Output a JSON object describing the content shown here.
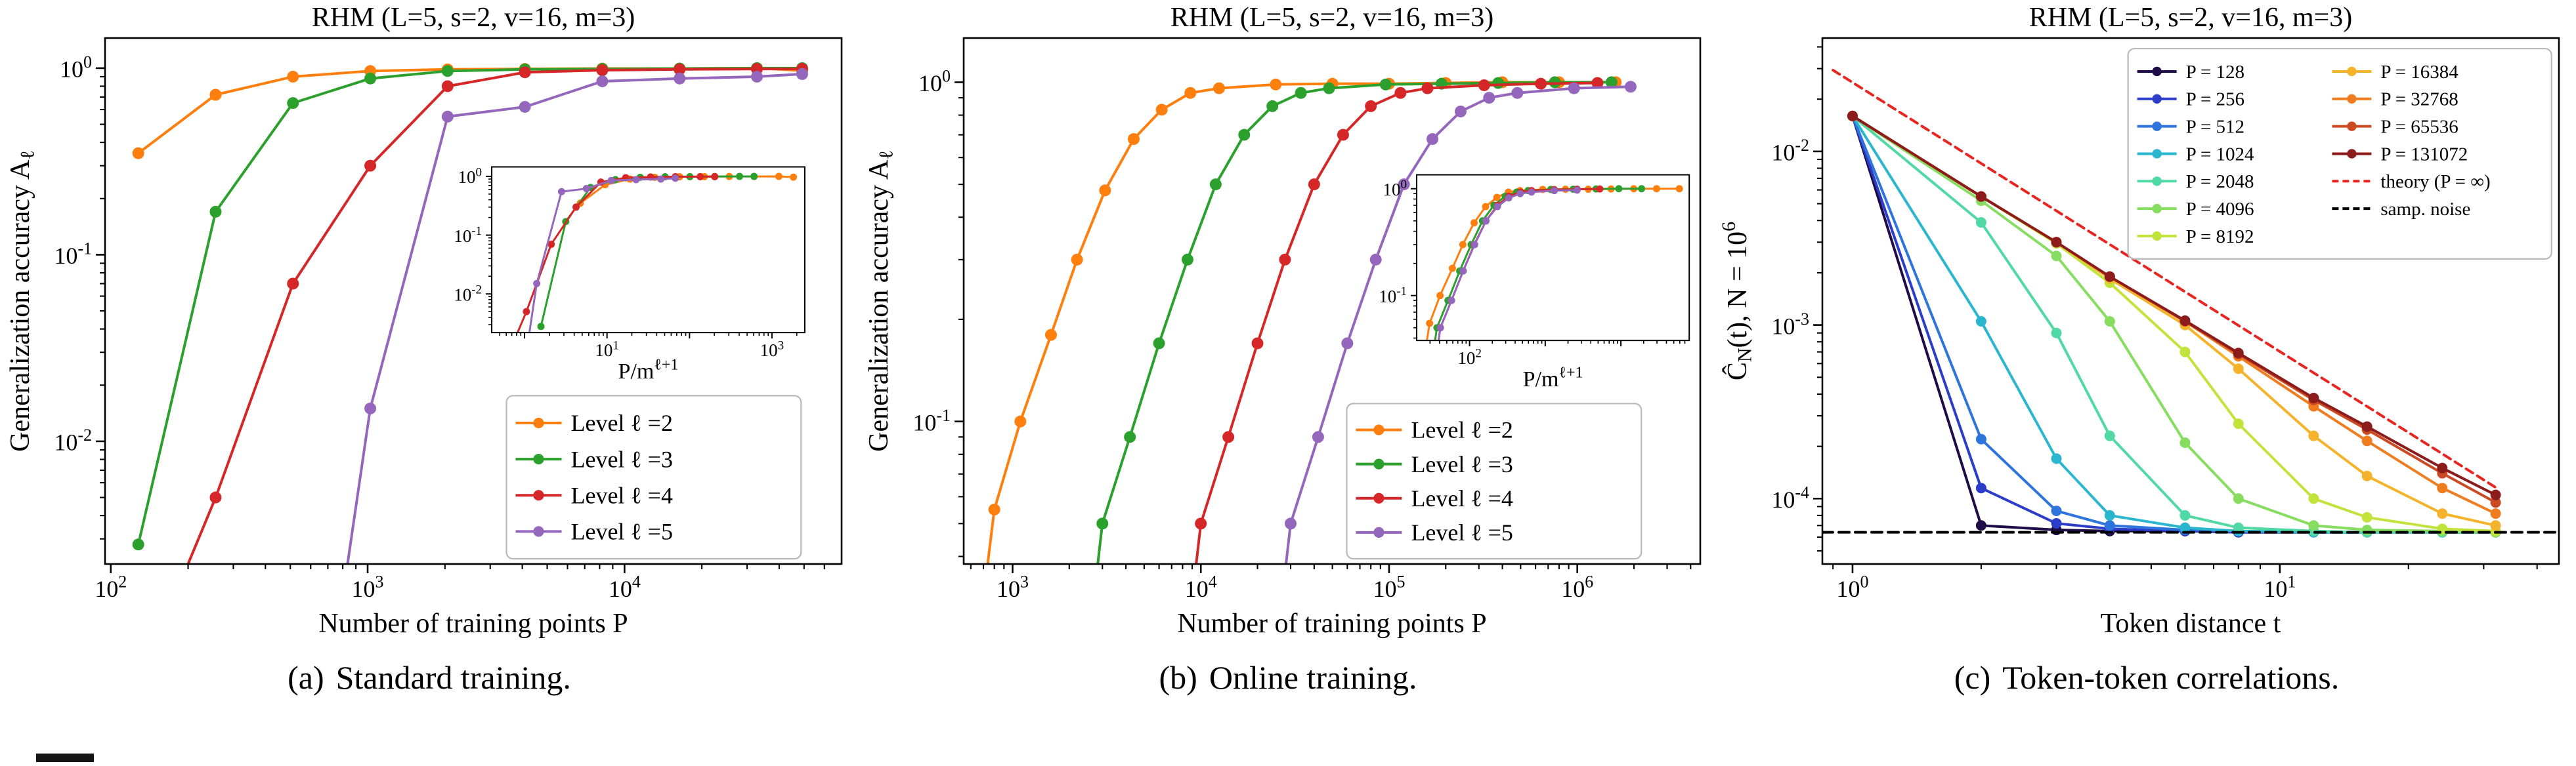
{
  "page": {
    "background": "#ffffff"
  },
  "captions": [
    {
      "label": "(a)",
      "text": "Standard training."
    },
    {
      "label": "(b)",
      "text": "Online training."
    },
    {
      "label": "(c)",
      "text": "Token-token correlations."
    }
  ],
  "chart_data": [
    {
      "type": "line",
      "title": "RHM (L=5, s=2, v=16, m=3)",
      "xlabel": "Number of training points P",
      "ylabel": "Generalization accuracy A_{ℓ}",
      "xscale": "log",
      "yscale": "log",
      "xlim": [
        95,
        70000
      ],
      "ylim": [
        0.0022,
        1.45
      ],
      "grid": false,
      "legend": {
        "position": "lower right",
        "fx": 0.545,
        "fy": 0.68,
        "fw": 0.4,
        "fh": 0.31,
        "font": 36,
        "cols": 1,
        "sample": 70
      },
      "inset": {
        "xlabel": "P/m^{ℓ+1}",
        "xlim": [
          0.4,
          2500
        ],
        "ylim": [
          0.0022,
          1.45
        ],
        "divisors": [
          27,
          81,
          243,
          729
        ],
        "fx": 0.525,
        "fy": 0.245,
        "fw": 0.425,
        "fh": 0.315,
        "xLabelStart": 1,
        "xLabelEvery": 2
      },
      "series": [
        {
          "name": "Level ℓ =2",
          "color": "#ff7f0e",
          "x": [
            128,
            256,
            512,
            1024,
            2048,
            4096,
            8192,
            16384,
            32768,
            49152
          ],
          "y": [
            0.35,
            0.72,
            0.9,
            0.965,
            0.985,
            0.99,
            0.995,
            0.995,
            1.0,
            0.97
          ]
        },
        {
          "name": "Level ℓ =3",
          "color": "#2ca02c",
          "x": [
            128,
            256,
            512,
            1024,
            2048,
            4096,
            8192,
            16384,
            32768,
            49152
          ],
          "y": [
            0.0028,
            0.17,
            0.65,
            0.88,
            0.965,
            0.985,
            0.99,
            0.995,
            1.0,
            1.0
          ]
        },
        {
          "name": "Level ℓ =4",
          "color": "#d62728",
          "x": [
            128,
            256,
            512,
            1024,
            2048,
            4096,
            8192,
            16384,
            32768,
            49152
          ],
          "y": [
            0.0005,
            0.005,
            0.07,
            0.3,
            0.8,
            0.95,
            0.975,
            0.985,
            0.99,
            0.99
          ]
        },
        {
          "name": "Level ℓ =5",
          "color": "#9467bd",
          "x": [
            768,
            1024,
            2048,
            4096,
            8192,
            16384,
            32768,
            49152
          ],
          "y": [
            0.001,
            0.015,
            0.55,
            0.62,
            0.85,
            0.88,
            0.9,
            0.93
          ]
        }
      ]
    },
    {
      "type": "line",
      "title": "RHM (L=5, s=2, v=16, m=3)",
      "xlabel": "Number of training points P",
      "ylabel": "Generalization accuracy A_{ℓ}",
      "xscale": "log",
      "yscale": "log",
      "xlim": [
        550,
        4500000
      ],
      "ylim": [
        0.038,
        1.35
      ],
      "grid": false,
      "legend": {
        "position": "lower right",
        "fx": 0.52,
        "fy": 0.695,
        "fw": 0.4,
        "fh": 0.295,
        "font": 36,
        "cols": 1,
        "sample": 70
      },
      "inset": {
        "xlabel": "P/m^{ℓ+1}",
        "xlim": [
          20,
          80000
        ],
        "ylim": [
          0.038,
          1.35
        ],
        "divisors": [
          27,
          81,
          243,
          729
        ],
        "fx": 0.615,
        "fy": 0.26,
        "fw": 0.37,
        "fh": 0.315,
        "xLabelStart": 2,
        "xLabelEvery": 3
      },
      "series": [
        {
          "name": "Level ℓ =2",
          "color": "#ff7f0e",
          "x": [
            700,
            800,
            1100,
            1600,
            2200,
            3100,
            4400,
            6200,
            8800,
            12500,
            25000,
            50000,
            100000,
            200000,
            400000,
            800000,
            1600000
          ],
          "y": [
            0.03,
            0.055,
            0.1,
            0.18,
            0.3,
            0.48,
            0.68,
            0.83,
            0.93,
            0.96,
            0.985,
            0.99,
            0.99,
            0.995,
            1.0,
            1.0,
            1.0
          ]
        },
        {
          "name": "Level ℓ =3",
          "color": "#2ca02c",
          "x": [
            2700,
            3000,
            4200,
            6000,
            8500,
            12000,
            17000,
            24000,
            34000,
            48000,
            96000,
            190000,
            380000,
            760000,
            1520000
          ],
          "y": [
            0.03,
            0.05,
            0.09,
            0.17,
            0.3,
            0.5,
            0.7,
            0.85,
            0.93,
            0.96,
            0.985,
            0.99,
            0.995,
            1.0,
            1.0
          ]
        },
        {
          "name": "Level ℓ =4",
          "color": "#d62728",
          "x": [
            9000,
            10000,
            14000,
            20000,
            28000,
            40000,
            57000,
            80000,
            115000,
            160000,
            320000,
            640000,
            1280000
          ],
          "y": [
            0.03,
            0.05,
            0.09,
            0.17,
            0.3,
            0.5,
            0.7,
            0.85,
            0.93,
            0.96,
            0.98,
            0.99,
            0.995
          ]
        },
        {
          "name": "Level ℓ =5",
          "color": "#9467bd",
          "x": [
            27000,
            30000,
            42000,
            60000,
            85000,
            120000,
            170000,
            240000,
            340000,
            480000,
            960000,
            1920000
          ],
          "y": [
            0.03,
            0.05,
            0.09,
            0.17,
            0.3,
            0.5,
            0.68,
            0.82,
            0.9,
            0.93,
            0.96,
            0.97
          ]
        }
      ]
    },
    {
      "type": "line",
      "title": "RHM (L=5, s=2, v=16, m=3)",
      "xlabel": "Token distance t",
      "ylabel": "Ĉ_{N}(t), N = 10^{6}",
      "xscale": "log",
      "yscale": "log",
      "xlim": [
        0.85,
        45
      ],
      "ylim": [
        4.2e-05,
        0.045
      ],
      "grid": false,
      "legend": {
        "position": "upper right",
        "fx": 0.415,
        "fy": 0.02,
        "fw": 0.575,
        "fh": 0.4,
        "font": 29,
        "cols": 2,
        "colBreak": 7,
        "col2fx": 0.46,
        "sample": 60
      },
      "series": [
        {
          "name": "P = 128",
          "color": "#1f0c48",
          "x": [
            1,
            2,
            3,
            4,
            6,
            8,
            12,
            16,
            24,
            32
          ],
          "y": [
            0.016,
            7e-05,
            6.6e-05,
            6.5e-05,
            6.5e-05,
            6.4e-05,
            6.4e-05,
            6.4e-05,
            6.4e-05,
            6.4e-05
          ]
        },
        {
          "name": "P = 256",
          "color": "#2c3ec9",
          "x": [
            1,
            2,
            3,
            4,
            6,
            8,
            12,
            16,
            24,
            32
          ],
          "y": [
            0.016,
            0.000115,
            7.2e-05,
            6.7e-05,
            6.5e-05,
            6.4e-05,
            6.4e-05,
            6.4e-05,
            6.4e-05,
            6.4e-05
          ]
        },
        {
          "name": "P = 512",
          "color": "#2d74dd",
          "x": [
            1,
            2,
            3,
            4,
            6,
            8,
            12,
            16,
            24,
            32
          ],
          "y": [
            0.016,
            0.00022,
            8.5e-05,
            7e-05,
            6.6e-05,
            6.5e-05,
            6.4e-05,
            6.4e-05,
            6.4e-05,
            6.4e-05
          ]
        },
        {
          "name": "P = 1024",
          "color": "#2ab6cf",
          "x": [
            1,
            2,
            3,
            4,
            6,
            8,
            12,
            16,
            24,
            32
          ],
          "y": [
            0.016,
            0.00105,
            0.00017,
            8e-05,
            6.8e-05,
            6.5e-05,
            6.4e-05,
            6.4e-05,
            6.4e-05,
            6.4e-05
          ]
        },
        {
          "name": "P = 2048",
          "color": "#50d8a5",
          "x": [
            1,
            2,
            3,
            4,
            6,
            8,
            12,
            16,
            24,
            32
          ],
          "y": [
            0.016,
            0.0039,
            0.0009,
            0.00023,
            8e-05,
            6.8e-05,
            6.5e-05,
            6.4e-05,
            6.4e-05,
            6.4e-05
          ]
        },
        {
          "name": "P = 4096",
          "color": "#86dd60",
          "x": [
            1,
            2,
            3,
            4,
            6,
            8,
            12,
            16,
            24,
            32
          ],
          "y": [
            0.016,
            0.0052,
            0.0025,
            0.00105,
            0.00021,
            0.0001,
            7e-05,
            6.6e-05,
            6.5e-05,
            6.4e-05
          ]
        },
        {
          "name": "P = 8192",
          "color": "#c2e33c",
          "x": [
            1,
            2,
            3,
            4,
            6,
            8,
            12,
            16,
            24,
            32
          ],
          "y": [
            0.016,
            0.0055,
            0.00295,
            0.00175,
            0.0007,
            0.00027,
            0.0001,
            7.8e-05,
            6.7e-05,
            6.5e-05
          ]
        },
        {
          "name": "P = 16384",
          "color": "#f4b32a",
          "x": [
            1,
            2,
            3,
            4,
            6,
            8,
            12,
            16,
            24,
            32
          ],
          "y": [
            0.016,
            0.0055,
            0.003,
            0.00185,
            0.001,
            0.00056,
            0.00023,
            0.000135,
            8.2e-05,
            7e-05
          ]
        },
        {
          "name": "P = 32768",
          "color": "#ef7d1f",
          "x": [
            1,
            2,
            3,
            4,
            6,
            8,
            12,
            16,
            24,
            32
          ],
          "y": [
            0.016,
            0.0055,
            0.003,
            0.0019,
            0.00105,
            0.00066,
            0.00034,
            0.000215,
            0.000115,
            8.2e-05
          ]
        },
        {
          "name": "P = 65536",
          "color": "#cc4a22",
          "x": [
            1,
            2,
            3,
            4,
            6,
            8,
            12,
            16,
            24,
            32
          ],
          "y": [
            0.016,
            0.0055,
            0.003,
            0.0019,
            0.00105,
            0.00068,
            0.00037,
            0.00025,
            0.00014,
            9.5e-05
          ]
        },
        {
          "name": "P = 131072",
          "color": "#8c1b1b",
          "x": [
            1,
            2,
            3,
            4,
            6,
            8,
            12,
            16,
            24,
            32
          ],
          "y": [
            0.016,
            0.0055,
            0.003,
            0.0019,
            0.00106,
            0.00069,
            0.00038,
            0.00026,
            0.00015,
            0.000105
          ]
        },
        {
          "name": "theory (P = ∞)",
          "color": "#e8251f",
          "dash": "12 8",
          "x": [
            0.9,
            32
          ],
          "y": [
            0.0294,
            0.000116
          ]
        },
        {
          "name": "samp. noise",
          "color": "#000000",
          "dash": "16 9",
          "x": [
            0.85,
            45
          ],
          "y": [
            6.4e-05,
            6.4e-05
          ]
        }
      ]
    }
  ]
}
